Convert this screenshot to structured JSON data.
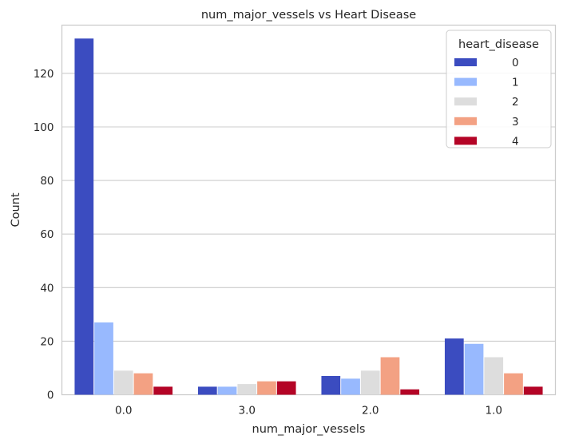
{
  "chart_data": {
    "type": "bar",
    "title": "num_major_vessels vs Heart Disease",
    "xlabel": "num_major_vessels",
    "ylabel": "Count",
    "categories": [
      "0.0",
      "3.0",
      "2.0",
      "1.0"
    ],
    "ylim": [
      0,
      138
    ],
    "yticks": [
      0,
      20,
      40,
      60,
      80,
      100,
      120
    ],
    "grid": true,
    "legend_title": "heart_disease",
    "legend_position": "top-right",
    "series": [
      {
        "name": "0",
        "color": "#3b4cc0",
        "values": [
          133,
          3,
          7,
          21
        ]
      },
      {
        "name": "1",
        "color": "#98b9fe",
        "values": [
          27,
          3,
          6,
          19
        ]
      },
      {
        "name": "2",
        "color": "#dddddd",
        "values": [
          9,
          4,
          9,
          14
        ]
      },
      {
        "name": "3",
        "color": "#f3a183",
        "values": [
          8,
          5,
          14,
          8
        ]
      },
      {
        "name": "4",
        "color": "#b40426",
        "values": [
          3,
          5,
          2,
          3
        ]
      }
    ]
  }
}
